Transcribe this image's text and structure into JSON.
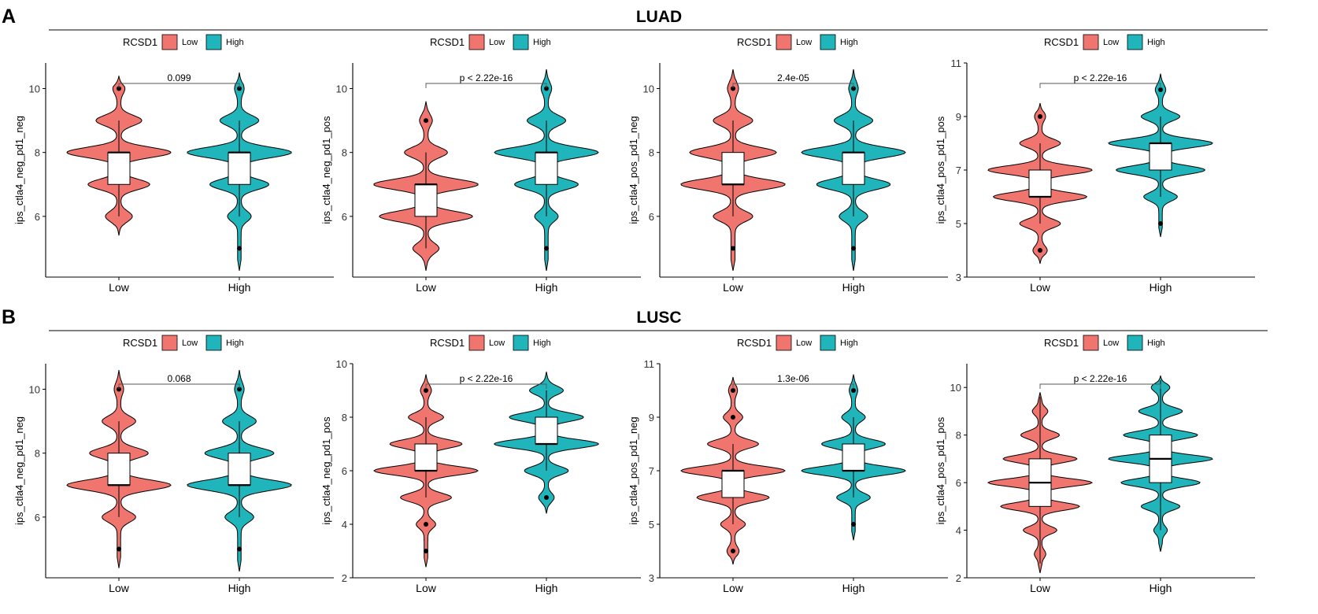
{
  "colors": {
    "low": "#F0756E",
    "high": "#1FB5BA",
    "axis": "#000000"
  },
  "chart_data": [
    {
      "type": "violin",
      "panel_label": "A",
      "title": "LUAD",
      "legend": {
        "title": "RCSD1",
        "entries": [
          "Low",
          "High"
        ],
        "placement": "top-left"
      },
      "panels": [
        {
          "ylabel": "ips_ctla4_neg_pd1_neg",
          "ylim": [
            4.1,
            10.8
          ],
          "yticks": [
            6,
            8,
            10
          ],
          "categories": [
            "Low",
            "High"
          ],
          "p_label": "0.099",
          "groups": [
            {
              "name": "Low",
              "q1": 7,
              "median": 8,
              "q3": 8,
              "whisker_low": 6,
              "whisker_high": 9,
              "outliers": [
                10
              ],
              "modes": [
                {
                  "v": 6,
                  "w": 0.22
                },
                {
                  "v": 7,
                  "w": 0.55
                },
                {
                  "v": 8,
                  "w": 0.95
                },
                {
                  "v": 9,
                  "w": 0.4
                },
                {
                  "v": 10,
                  "w": 0.08
                }
              ],
              "range": [
                5.4,
                10.4
              ]
            },
            {
              "name": "High",
              "q1": 7,
              "median": 8,
              "q3": 8,
              "whisker_low": 6,
              "whisker_high": 9,
              "outliers": [
                10,
                5
              ],
              "modes": [
                {
                  "v": 6,
                  "w": 0.2
                },
                {
                  "v": 7,
                  "w": 0.55
                },
                {
                  "v": 8,
                  "w": 1.0
                },
                {
                  "v": 9,
                  "w": 0.35
                },
                {
                  "v": 10,
                  "w": 0.06
                }
              ],
              "range": [
                4.3,
                10.5
              ]
            }
          ]
        },
        {
          "ylabel": "ips_ctla4_neg_pd1_pos",
          "ylim": [
            4.1,
            10.8
          ],
          "yticks": [
            6,
            8,
            10
          ],
          "categories": [
            "Low",
            "High"
          ],
          "p_label": "p < 2.22e-16",
          "groups": [
            {
              "name": "Low",
              "q1": 6,
              "median": 7,
              "q3": 7,
              "whisker_low": 5,
              "whisker_high": 8,
              "outliers": [
                9
              ],
              "modes": [
                {
                  "v": 5,
                  "w": 0.2
                },
                {
                  "v": 6,
                  "w": 0.8
                },
                {
                  "v": 7,
                  "w": 0.9
                },
                {
                  "v": 8,
                  "w": 0.35
                },
                {
                  "v": 9,
                  "w": 0.08
                }
              ],
              "range": [
                4.3,
                9.6
              ]
            },
            {
              "name": "High",
              "q1": 7,
              "median": 8,
              "q3": 8,
              "whisker_low": 6,
              "whisker_high": 9,
              "outliers": [
                10,
                5
              ],
              "modes": [
                {
                  "v": 6,
                  "w": 0.2
                },
                {
                  "v": 7,
                  "w": 0.6
                },
                {
                  "v": 8,
                  "w": 1.0
                },
                {
                  "v": 9,
                  "w": 0.35
                },
                {
                  "v": 10,
                  "w": 0.07
                }
              ],
              "range": [
                4.3,
                10.6
              ]
            }
          ]
        },
        {
          "ylabel": "ips_ctla4_pos_pd1_neg",
          "ylim": [
            4.1,
            10.8
          ],
          "yticks": [
            6,
            8,
            10
          ],
          "categories": [
            "Low",
            "High"
          ],
          "p_label": "2.4e-05",
          "groups": [
            {
              "name": "Low",
              "q1": 7,
              "median": 7,
              "q3": 8,
              "whisker_low": 6,
              "whisker_high": 9,
              "outliers": [
                10,
                5
              ],
              "modes": [
                {
                  "v": 6,
                  "w": 0.3
                },
                {
                  "v": 7,
                  "w": 0.85
                },
                {
                  "v": 8,
                  "w": 0.7
                },
                {
                  "v": 9,
                  "w": 0.3
                },
                {
                  "v": 10,
                  "w": 0.06
                }
              ],
              "range": [
                4.3,
                10.6
              ]
            },
            {
              "name": "High",
              "q1": 7,
              "median": 8,
              "q3": 8,
              "whisker_low": 6,
              "whisker_high": 9,
              "outliers": [
                10,
                5
              ],
              "modes": [
                {
                  "v": 6,
                  "w": 0.25
                },
                {
                  "v": 7,
                  "w": 0.7
                },
                {
                  "v": 8,
                  "w": 1.0
                },
                {
                  "v": 9,
                  "w": 0.35
                },
                {
                  "v": 10,
                  "w": 0.06
                }
              ],
              "range": [
                4.3,
                10.6
              ]
            }
          ]
        },
        {
          "ylabel": "ips_ctla4_pos_pd1_pos",
          "ylim": [
            3,
            11
          ],
          "yticks": [
            3,
            5,
            7,
            9,
            11
          ],
          "categories": [
            "Low",
            "High"
          ],
          "p_label": "p < 2.22e-16",
          "groups": [
            {
              "name": "Low",
              "q1": 6,
              "median": 6,
              "q3": 7,
              "whisker_low": 5,
              "whisker_high": 8,
              "outliers": [
                9,
                4
              ],
              "modes": [
                {
                  "v": 4,
                  "w": 0.1
                },
                {
                  "v": 5,
                  "w": 0.35
                },
                {
                  "v": 6,
                  "w": 0.85
                },
                {
                  "v": 7,
                  "w": 0.95
                },
                {
                  "v": 8,
                  "w": 0.35
                },
                {
                  "v": 9,
                  "w": 0.07
                }
              ],
              "range": [
                3.5,
                9.5
              ]
            },
            {
              "name": "High",
              "q1": 7,
              "median": 8,
              "q3": 8,
              "whisker_low": 6,
              "whisker_high": 9,
              "outliers": [
                10,
                5
              ],
              "modes": [
                {
                  "v": 6,
                  "w": 0.3
                },
                {
                  "v": 7,
                  "w": 0.85
                },
                {
                  "v": 8,
                  "w": 1.0
                },
                {
                  "v": 9,
                  "w": 0.35
                },
                {
                  "v": 10,
                  "w": 0.07
                }
              ],
              "range": [
                4.5,
                10.6
              ]
            }
          ]
        }
      ]
    },
    {
      "type": "violin",
      "panel_label": "B",
      "title": "LUSC",
      "legend": {
        "title": "RCSD1",
        "entries": [
          "Low",
          "High"
        ],
        "placement": "top-left"
      },
      "panels": [
        {
          "ylabel": "ips_ctla4_neg_pd1_neg",
          "ylim": [
            4.1,
            10.8
          ],
          "yticks": [
            6,
            8,
            10
          ],
          "categories": [
            "Low",
            "High"
          ],
          "p_label": "0.068",
          "groups": [
            {
              "name": "Low",
              "q1": 7,
              "median": 7,
              "q3": 8,
              "whisker_low": 6,
              "whisker_high": 9,
              "outliers": [
                10,
                5
              ],
              "modes": [
                {
                  "v": 6,
                  "w": 0.3
                },
                {
                  "v": 7,
                  "w": 1.0
                },
                {
                  "v": 8,
                  "w": 0.55
                },
                {
                  "v": 9,
                  "w": 0.3
                },
                {
                  "v": 10,
                  "w": 0.06
                }
              ],
              "range": [
                4.4,
                10.6
              ]
            },
            {
              "name": "High",
              "q1": 7,
              "median": 7,
              "q3": 8,
              "whisker_low": 6,
              "whisker_high": 9,
              "outliers": [
                10,
                5
              ],
              "modes": [
                {
                  "v": 6,
                  "w": 0.25
                },
                {
                  "v": 7,
                  "w": 1.0
                },
                {
                  "v": 8,
                  "w": 0.65
                },
                {
                  "v": 9,
                  "w": 0.3
                },
                {
                  "v": 10,
                  "w": 0.06
                }
              ],
              "range": [
                4.3,
                10.6
              ]
            }
          ]
        },
        {
          "ylabel": "ips_ctla4_neg_pd1_pos",
          "ylim": [
            2,
            10
          ],
          "yticks": [
            2,
            4,
            6,
            8,
            10
          ],
          "categories": [
            "Low",
            "High"
          ],
          "p_label": "p < 2.22e-16",
          "groups": [
            {
              "name": "Low",
              "q1": 6,
              "median": 6,
              "q3": 7,
              "whisker_low": 5,
              "whisker_high": 8,
              "outliers": [
                9,
                4,
                3
              ],
              "modes": [
                {
                  "v": 4,
                  "w": 0.15
                },
                {
                  "v": 5,
                  "w": 0.45
                },
                {
                  "v": 6,
                  "w": 0.95
                },
                {
                  "v": 7,
                  "w": 0.65
                },
                {
                  "v": 8,
                  "w": 0.3
                },
                {
                  "v": 9,
                  "w": 0.07
                }
              ],
              "range": [
                2.4,
                9.6
              ]
            },
            {
              "name": "High",
              "q1": 7,
              "median": 7,
              "q3": 8,
              "whisker_low": 6,
              "whisker_high": 9,
              "outliers": [
                5
              ],
              "modes": [
                {
                  "v": 5,
                  "w": 0.12
                },
                {
                  "v": 6,
                  "w": 0.4
                },
                {
                  "v": 7,
                  "w": 1.0
                },
                {
                  "v": 8,
                  "w": 0.7
                },
                {
                  "v": 9,
                  "w": 0.3
                }
              ],
              "range": [
                4.4,
                9.7
              ]
            }
          ]
        },
        {
          "ylabel": "ips_ctla4_pos_pd1_neg",
          "ylim": [
            3,
            11
          ],
          "yticks": [
            3,
            5,
            7,
            9,
            11
          ],
          "categories": [
            "Low",
            "High"
          ],
          "p_label": "1.3e-06",
          "groups": [
            {
              "name": "Low",
              "q1": 6,
              "median": 7,
              "q3": 7,
              "whisker_low": 5,
              "whisker_high": 8,
              "outliers": [
                10,
                9,
                4
              ],
              "modes": [
                {
                  "v": 4,
                  "w": 0.08
                },
                {
                  "v": 5,
                  "w": 0.2
                },
                {
                  "v": 6,
                  "w": 0.65
                },
                {
                  "v": 7,
                  "w": 0.95
                },
                {
                  "v": 8,
                  "w": 0.45
                },
                {
                  "v": 9,
                  "w": 0.15
                },
                {
                  "v": 10,
                  "w": 0.05
                }
              ],
              "range": [
                3.5,
                10.5
              ]
            },
            {
              "name": "High",
              "q1": 7,
              "median": 7,
              "q3": 8,
              "whisker_low": 6,
              "whisker_high": 9,
              "outliers": [
                10,
                5
              ],
              "modes": [
                {
                  "v": 6,
                  "w": 0.3
                },
                {
                  "v": 7,
                  "w": 1.0
                },
                {
                  "v": 8,
                  "w": 0.6
                },
                {
                  "v": 9,
                  "w": 0.2
                },
                {
                  "v": 10,
                  "w": 0.05
                }
              ],
              "range": [
                4.4,
                10.6
              ]
            }
          ]
        },
        {
          "ylabel": "ips_ctla4_pos_pd1_pos",
          "ylim": [
            2,
            11
          ],
          "yticks": [
            2,
            4,
            6,
            8,
            10
          ],
          "categories": [
            "Low",
            "High"
          ],
          "p_label": "p < 2.22e-16",
          "groups": [
            {
              "name": "Low",
              "q1": 5,
              "median": 6,
              "q3": 7,
              "whisker_low": 2.6,
              "whisker_high": 9.6,
              "outliers": [],
              "modes": [
                {
                  "v": 3,
                  "w": 0.08
                },
                {
                  "v": 4,
                  "w": 0.3
                },
                {
                  "v": 5,
                  "w": 0.75
                },
                {
                  "v": 6,
                  "w": 1.0
                },
                {
                  "v": 7,
                  "w": 0.7
                },
                {
                  "v": 8,
                  "w": 0.35
                },
                {
                  "v": 9,
                  "w": 0.12
                }
              ],
              "range": [
                2.2,
                9.8
              ]
            },
            {
              "name": "High",
              "q1": 6,
              "median": 7,
              "q3": 8,
              "whisker_low": 4,
              "whisker_high": 10.3,
              "outliers": [],
              "modes": [
                {
                  "v": 4,
                  "w": 0.1
                },
                {
                  "v": 5,
                  "w": 0.35
                },
                {
                  "v": 6,
                  "w": 0.75
                },
                {
                  "v": 7,
                  "w": 1.0
                },
                {
                  "v": 8,
                  "w": 0.7
                },
                {
                  "v": 9,
                  "w": 0.4
                },
                {
                  "v": 10,
                  "w": 0.15
                }
              ],
              "range": [
                3.1,
                10.5
              ]
            }
          ]
        }
      ]
    }
  ]
}
